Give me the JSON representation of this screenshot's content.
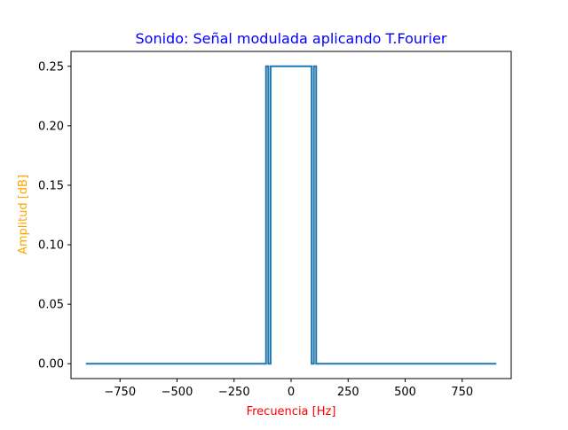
{
  "chart_data": {
    "type": "line",
    "title": "Sonido: Señal modulada aplicando T.Fourier",
    "xlabel": "Frecuencia [Hz]",
    "ylabel": "Amplitud [dB]",
    "xlim": [
      -965,
      965
    ],
    "ylim": [
      -0.0125,
      0.2625
    ],
    "xticks": [
      -750,
      -500,
      -250,
      0,
      250,
      500,
      750
    ],
    "xtick_labels": [
      "−750",
      "−500",
      "−250",
      "0",
      "250",
      "500",
      "750"
    ],
    "yticks": [
      0.0,
      0.05,
      0.1,
      0.15,
      0.2,
      0.25
    ],
    "ytick_labels": [
      "0.00",
      "0.05",
      "0.10",
      "0.15",
      "0.20",
      "0.25"
    ],
    "grid": false,
    "series": [
      {
        "x": [
          -900,
          -110,
          -110,
          -100,
          -100,
          -90,
          -90,
          90,
          90,
          100,
          100,
          110,
          110,
          900
        ],
        "y": [
          0,
          0,
          0.25,
          0.25,
          0,
          0,
          0.25,
          0.25,
          0,
          0,
          0.25,
          0.25,
          0,
          0
        ]
      }
    ],
    "colors": {
      "line": "#1f77b4",
      "title": "#0000ff",
      "xlabel": "#ff0000",
      "ylabel": "#ffa500",
      "axes": "#000000"
    }
  }
}
